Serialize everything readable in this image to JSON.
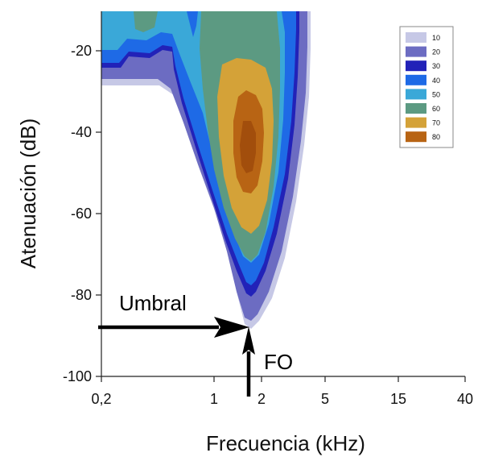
{
  "chart_data": {
    "type": "heatmap",
    "xlabel": "Frecuencia (kHz)",
    "ylabel": "Atenuación (dB)",
    "x_scale": "log",
    "xlim": [
      0.2,
      40
    ],
    "ylim": [
      -100,
      -10
    ],
    "x_ticks": [
      {
        "value": 0.2,
        "label": "0,2"
      },
      {
        "value": 1,
        "label": "1"
      },
      {
        "value": 2,
        "label": "2"
      },
      {
        "value": 5,
        "label": "5"
      },
      {
        "value": 15,
        "label": "15"
      },
      {
        "value": 40,
        "label": "40"
      }
    ],
    "y_ticks": [
      {
        "value": -20,
        "label": "-20"
      },
      {
        "value": -40,
        "label": "-40"
      },
      {
        "value": -60,
        "label": "-60"
      },
      {
        "value": -80,
        "label": "-80"
      },
      {
        "value": -100,
        "label": "-100"
      }
    ],
    "legend": {
      "placement": "top-right",
      "entries": [
        {
          "label": "10",
          "color": "#c6c8e6"
        },
        {
          "label": "20",
          "color": "#6c6cc2"
        },
        {
          "label": "30",
          "color": "#2222b8"
        },
        {
          "label": "40",
          "color": "#1e6ae6"
        },
        {
          "label": "50",
          "color": "#3aa8d8"
        },
        {
          "label": "60",
          "color": "#5c9a82"
        },
        {
          "label": "70",
          "color": "#d4a238"
        },
        {
          "label": "80",
          "color": "#b86414"
        }
      ]
    },
    "threshold": {
      "frequency_khz": 1.7,
      "attenuation_db": -88
    },
    "annotations": {
      "threshold_label": "Umbral",
      "cf_label": "FO"
    },
    "grid": false
  }
}
